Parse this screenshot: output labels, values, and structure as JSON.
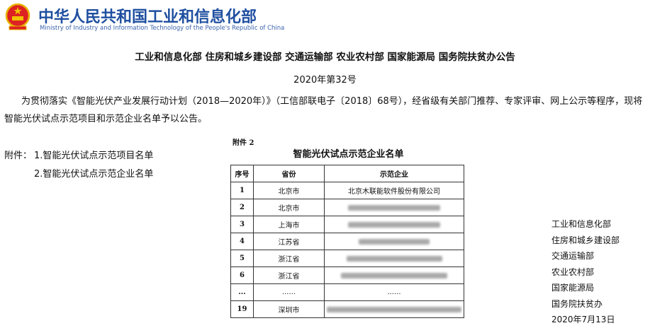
{
  "header": {
    "org_cn": "中华人民共和国工业和信息化部",
    "org_en": "Ministry of Industry and Information Technology of the People's Republic of China",
    "emblem_icon": "national-emblem",
    "brand_color": "#1f4fa0"
  },
  "doc": {
    "title": "工业和信息化部 住房和城乡建设部 交通运输部 农业农村部 国家能源局 国务院扶贫办公告",
    "number": "2020年第32号",
    "paragraph": "为贯彻落实《智能光伏产业发展行动计划（2018—2020年）》（工信部联电子〔2018〕68号），经省级有关部门推荐、专家评审、网上公示等程序，现将智能光伏试点示范项目和示范企业名单予以公告。",
    "attachments_label": "附件：",
    "attachments": [
      "1.智能光伏试点示范项目名单",
      "2.智能光伏试点示范企业名单"
    ]
  },
  "annex": {
    "label": "附件 2",
    "title": "智能光伏试点示范企业名单",
    "headers": [
      "序号",
      "省份",
      "示范企业"
    ],
    "rows": [
      {
        "no": "1",
        "province": "北京市",
        "company": "北京木联能软件股份有限公司"
      },
      {
        "no": "2",
        "province": "北京市",
        "company": ""
      },
      {
        "no": "3",
        "province": "上海市",
        "company": ""
      },
      {
        "no": "4",
        "province": "江苏省",
        "company": ""
      },
      {
        "no": "5",
        "province": "浙江省",
        "company": ""
      },
      {
        "no": "6",
        "province": "浙江省",
        "company": ""
      },
      {
        "no": "...",
        "province": "......",
        "company": "......"
      },
      {
        "no": "19",
        "province": "深圳市",
        "company": ""
      }
    ]
  },
  "signature": {
    "lines": [
      "工业和信息化部",
      "住房和城乡建设部",
      "交通运输部",
      "农业农村部",
      "国家能源局",
      "国务院扶贫办",
      "2020年7月13日"
    ]
  }
}
